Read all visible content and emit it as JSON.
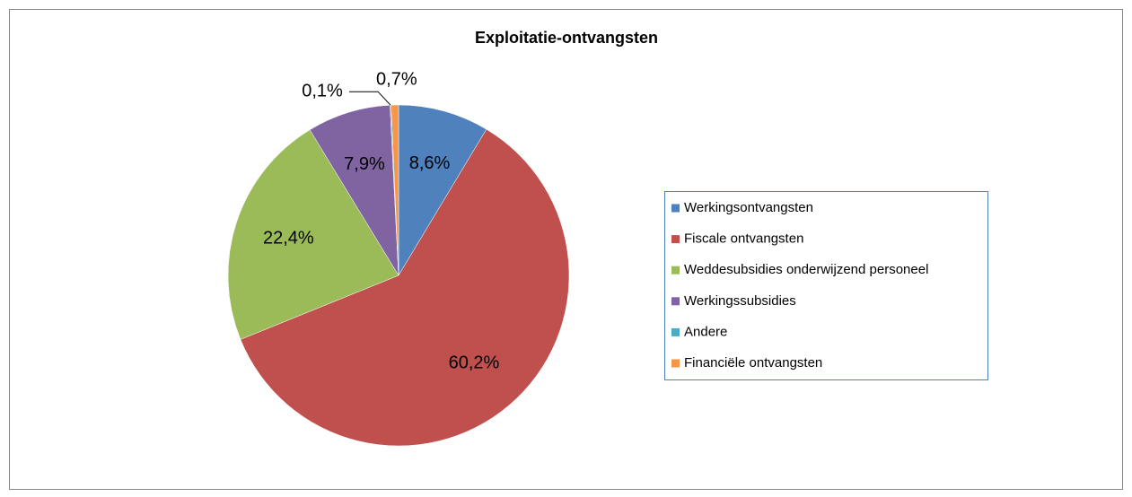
{
  "chart_data": {
    "type": "pie",
    "title": "Exploitatie-ontvangsten",
    "categories": [
      "Werkingsontvangsten",
      "Fiscale ontvangsten",
      "Weddesubsidies onderwijzend personeel",
      "Werkingssubsidies",
      "Andere",
      "Financiële ontvangsten"
    ],
    "values": [
      8.6,
      60.2,
      22.4,
      7.9,
      0.1,
      0.7
    ],
    "value_labels": [
      "8,6%",
      "60,2%",
      "22,4%",
      "7,9%",
      "0,1%",
      "0,7%"
    ],
    "colors": [
      "#4F81BD",
      "#C0504D",
      "#9BBB59",
      "#8064A2",
      "#4BACC6",
      "#F79646"
    ],
    "legend": "right"
  }
}
